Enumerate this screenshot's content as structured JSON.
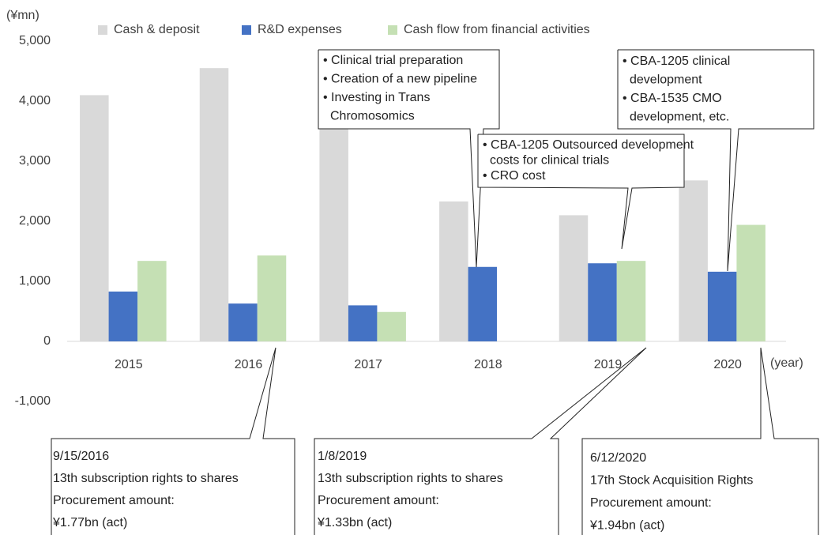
{
  "chart_data": {
    "type": "bar",
    "y_label": "(¥mn)",
    "x_label": "(year)",
    "categories": [
      "2015",
      "2016",
      "2017",
      "2018",
      "2019",
      "2020"
    ],
    "series": [
      {
        "name": "Cash & deposit",
        "color": "#d9d9d9",
        "values": [
          4100,
          4550,
          4000,
          2330,
          2100,
          2680
        ]
      },
      {
        "name": "R&D expenses",
        "color": "#4472c4",
        "values": [
          830,
          630,
          600,
          1240,
          1300,
          1160
        ]
      },
      {
        "name": "Cash flow from financial activities",
        "color": "#c5e0b4",
        "values": [
          1340,
          1430,
          490,
          null,
          1340,
          1940
        ]
      }
    ],
    "ylim": [
      -1000,
      5000
    ],
    "yticks": [
      {
        "value": -1000,
        "label": "-1,000"
      },
      0,
      {
        "value": 1000,
        "label": "1,000"
      },
      {
        "value": 2000,
        "label": "2,000"
      },
      {
        "value": 3000,
        "label": "3,000"
      },
      {
        "value": 4000,
        "label": "4,000"
      },
      {
        "value": 5000,
        "label": "5,000"
      }
    ],
    "annotations": [
      {
        "lines": [
          "• Clinical trial preparation",
          "• Creation of a new pipeline",
          "• Investing in Trans",
          "Chromosomics"
        ]
      },
      {
        "lines": [
          "• CBA-1205 Outsourced development",
          "costs for clinical trials",
          "• CRO cost"
        ]
      },
      {
        "lines": [
          "• CBA-1205 clinical",
          "development",
          "• CBA-1535 CMO",
          "development, etc."
        ]
      },
      {
        "lines": [
          "9/15/2016",
          "13th subscription rights to shares",
          "Procurement amount:",
          "¥1.77bn (act)"
        ]
      },
      {
        "lines": [
          "1/8/2019",
          "13th subscription rights to shares",
          "Procurement amount:",
          "¥1.33bn (act)"
        ]
      },
      {
        "lines": [
          "6/12/2020",
          "17th Stock Acquisition Rights",
          "Procurement amount:",
          "¥1.94bn (act)"
        ]
      }
    ]
  }
}
